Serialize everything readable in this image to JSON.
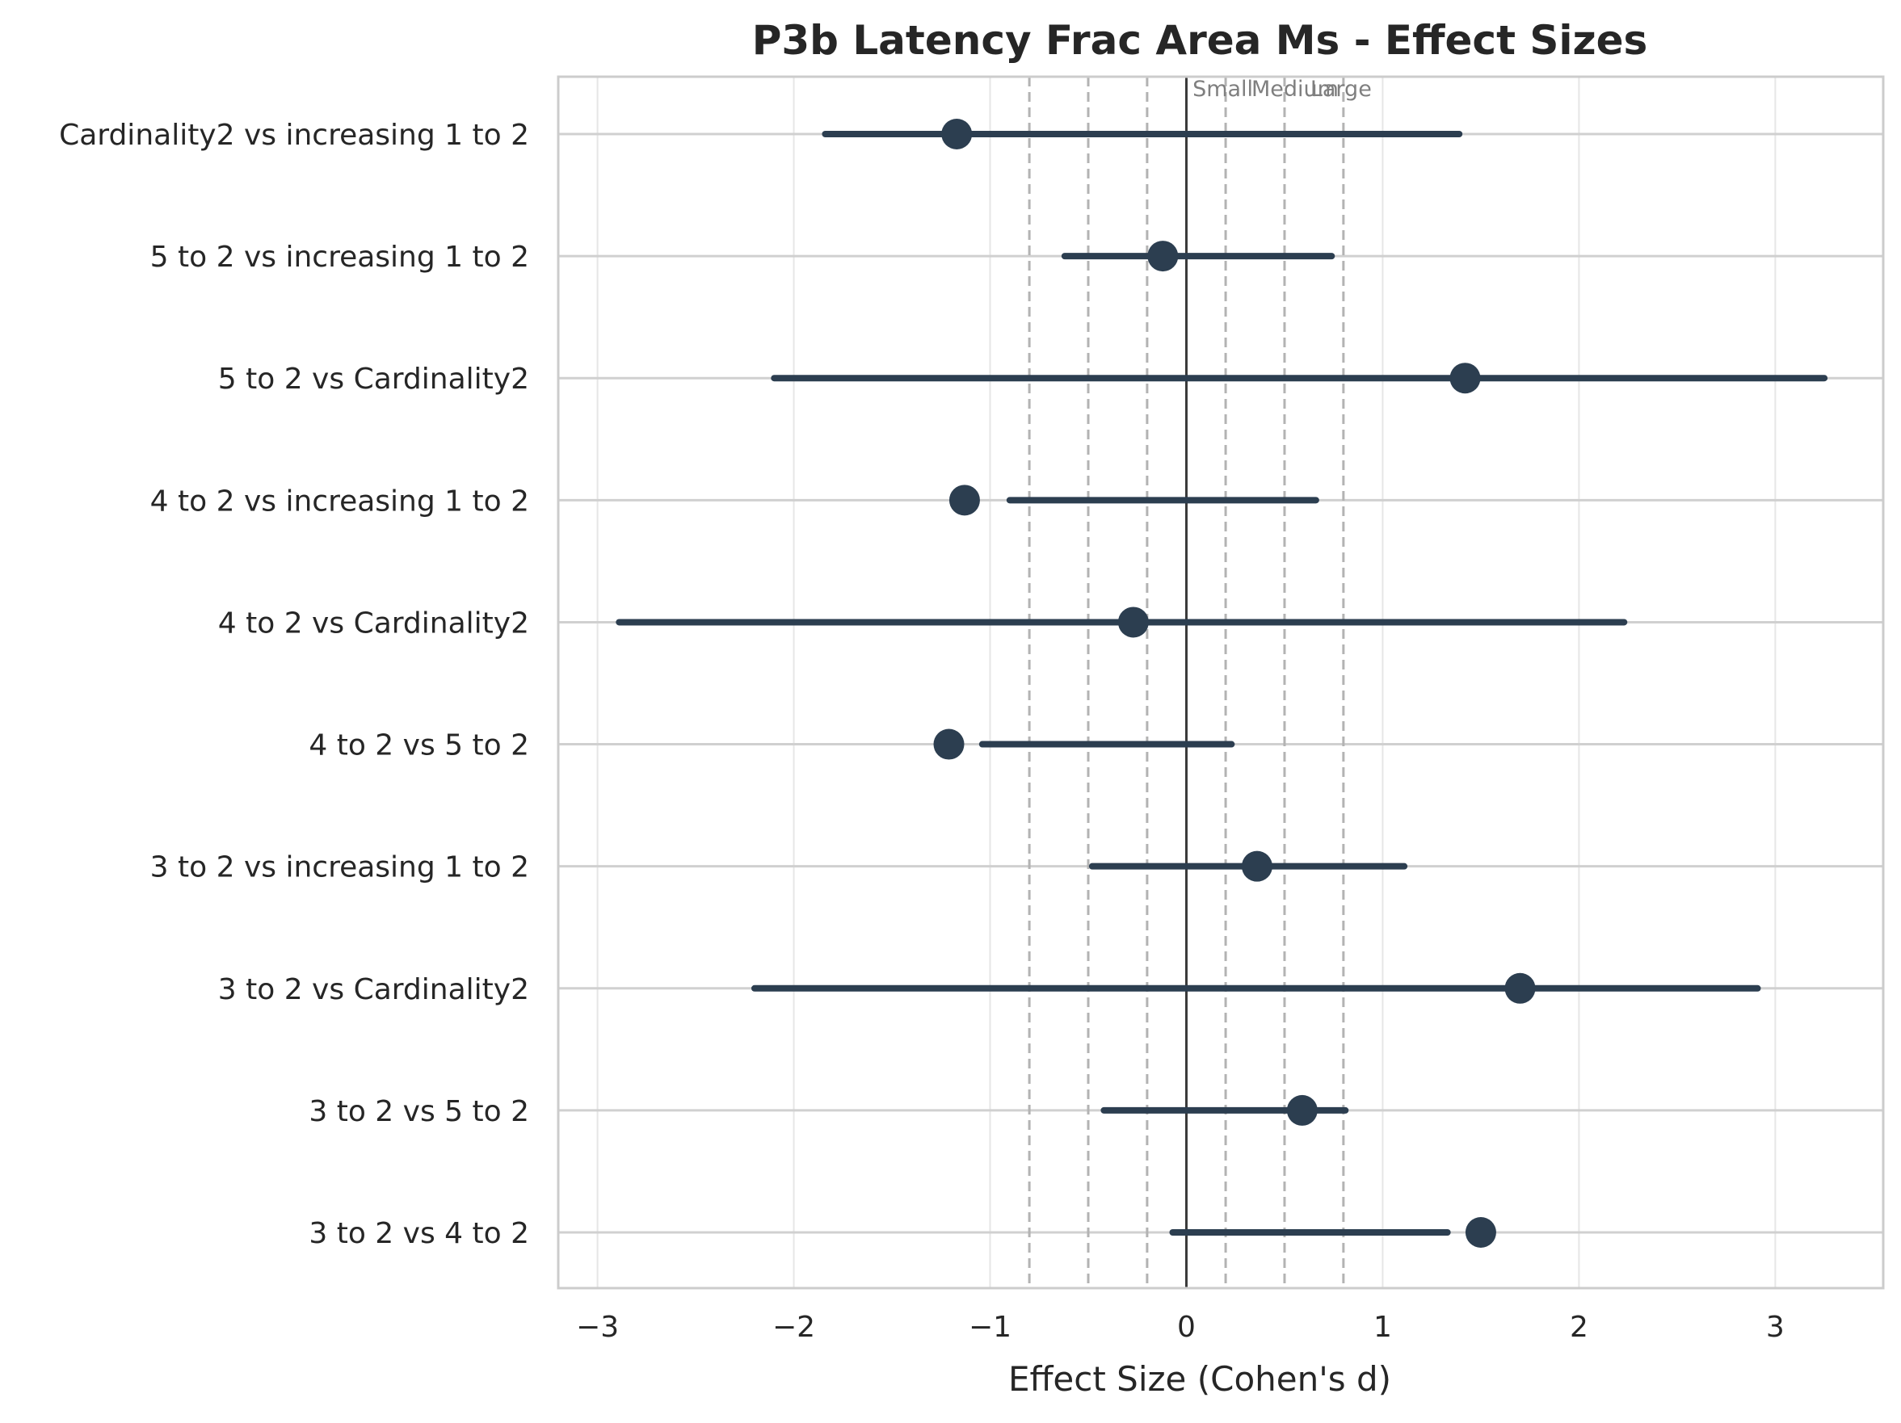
{
  "chart_data": {
    "type": "forest",
    "title": "P3b Latency Frac Area Ms - Effect Sizes",
    "xlabel": "Effect Size (Cohen's d)",
    "ylabel": "",
    "xlim": [
      -3.2,
      3.55
    ],
    "x_ticks": [
      -3,
      -2,
      -1,
      0,
      1,
      2,
      3
    ],
    "x_tick_labels": [
      "−3",
      "−2",
      "−1",
      "0",
      "1",
      "2",
      "3"
    ],
    "grid": true,
    "marker_color": "#2c3e50",
    "comparisons": [
      {
        "label": "Cardinality2 vs increasing 1 to 2",
        "d": -1.17,
        "ci_low": -1.84,
        "ci_high": 1.39
      },
      {
        "label": "5 to 2 vs increasing 1 to 2",
        "d": -0.12,
        "ci_low": -0.62,
        "ci_high": 0.74
      },
      {
        "label": "5 to 2 vs Cardinality2",
        "d": 1.42,
        "ci_low": -2.1,
        "ci_high": 3.25
      },
      {
        "label": "4 to 2 vs increasing 1 to 2",
        "d": -1.13,
        "ci_low": -0.9,
        "ci_high": 0.66
      },
      {
        "label": "4 to 2 vs Cardinality2",
        "d": -0.27,
        "ci_low": -2.89,
        "ci_high": 2.23
      },
      {
        "label": "4 to 2 vs 5 to 2",
        "d": -1.21,
        "ci_low": -1.04,
        "ci_high": 0.23
      },
      {
        "label": "3 to 2 vs increasing 1 to 2",
        "d": 0.36,
        "ci_low": -0.48,
        "ci_high": 1.11
      },
      {
        "label": "3 to 2 vs Cardinality2",
        "d": 1.7,
        "ci_low": -2.2,
        "ci_high": 2.91
      },
      {
        "label": "3 to 2 vs 5 to 2",
        "d": 0.59,
        "ci_low": -0.42,
        "ci_high": 0.81
      },
      {
        "label": "3 to 2 vs 4 to 2",
        "d": 1.5,
        "ci_low": -0.07,
        "ci_high": 1.33
      }
    ],
    "zero_line": 0,
    "thresholds": [
      {
        "value": 0.2,
        "label": "Small"
      },
      {
        "value": 0.5,
        "label": "Medium"
      },
      {
        "value": 0.8,
        "label": "Large"
      }
    ],
    "negative_thresholds": [
      -0.2,
      -0.5,
      -0.8
    ]
  }
}
